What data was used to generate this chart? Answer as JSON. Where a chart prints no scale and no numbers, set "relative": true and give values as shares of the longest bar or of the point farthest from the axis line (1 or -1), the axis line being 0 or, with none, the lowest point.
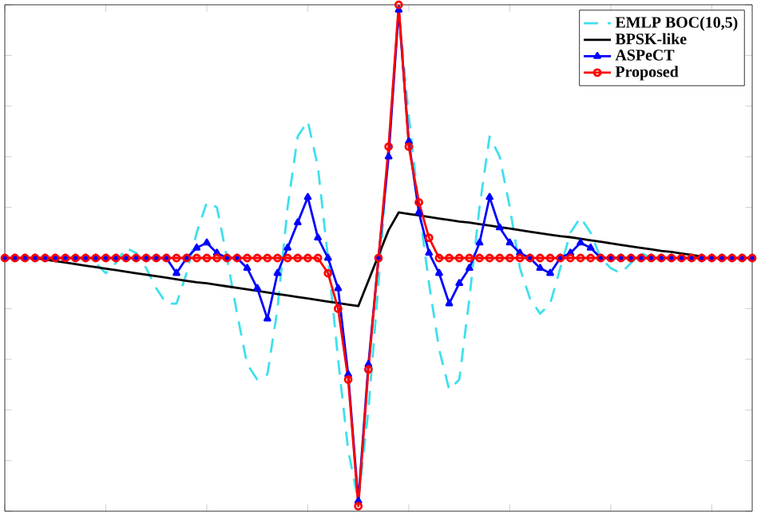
{
  "chart_data": {
    "type": "line",
    "relative": true,
    "legend": "top right",
    "tick_labels": false,
    "categories": [
      null,
      null,
      null,
      null,
      null,
      null,
      null,
      null,
      null,
      null,
      null,
      null,
      null,
      null,
      null,
      null,
      null,
      null,
      null,
      null,
      null,
      null,
      null,
      null,
      null,
      null,
      null,
      null,
      null,
      null,
      null,
      null,
      null,
      null,
      null,
      null,
      null,
      null,
      null,
      null,
      null,
      null,
      null,
      null,
      null,
      null,
      null,
      null,
      null,
      null,
      null,
      null,
      null,
      null,
      null,
      null,
      null,
      null,
      null,
      null,
      null,
      null,
      null,
      null,
      null,
      null,
      null,
      null,
      null,
      null,
      null,
      null,
      null,
      null,
      null
    ],
    "series": [
      {
        "name": "EMLP BOC(10,5)",
        "color": "#3ee0ec",
        "line_style": "dashed",
        "marker": "none",
        "values": [
          null,
          null,
          null,
          null,
          null,
          null,
          null,
          0.5,
          0.5,
          0.49,
          0.47,
          0.49,
          0.52,
          0.51,
          0.48,
          0.44,
          0.41,
          0.41,
          0.47,
          0.55,
          0.61,
          0.6,
          0.5,
          0.39,
          0.29,
          0.26,
          0.27,
          0.4,
          0.6,
          0.74,
          0.77,
          0.68,
          0.5,
          0.3,
          0.12,
          0.02,
          0.2,
          0.45,
          0.72,
          0.99,
          0.78,
          0.6,
          0.45,
          0.32,
          0.24,
          0.26,
          0.42,
          0.6,
          0.74,
          0.7,
          0.6,
          0.48,
          0.42,
          0.39,
          0.41,
          0.48,
          0.55,
          0.58,
          0.55,
          0.5,
          0.48,
          0.47,
          0.49,
          0.51,
          0.5,
          0.5,
          0.5,
          null,
          null,
          null,
          null,
          null,
          null,
          null,
          null
        ]
      },
      {
        "name": "BPSK-like",
        "color": "#000000",
        "line_style": "solid",
        "marker": "none",
        "values": [
          null,
          null,
          null,
          0.5,
          0.497,
          0.494,
          0.491,
          0.488,
          0.485,
          0.482,
          0.479,
          0.476,
          0.473,
          0.47,
          0.467,
          0.464,
          0.461,
          0.458,
          0.455,
          0.452,
          0.45,
          0.447,
          0.444,
          0.441,
          0.438,
          0.435,
          0.432,
          0.429,
          0.426,
          0.423,
          0.42,
          0.417,
          0.414,
          0.411,
          0.408,
          0.405,
          0.455,
          0.505,
          0.555,
          0.59,
          0.587,
          0.584,
          0.581,
          0.578,
          0.575,
          0.572,
          0.57,
          0.567,
          0.564,
          0.561,
          0.558,
          0.555,
          0.552,
          0.549,
          0.546,
          0.543,
          0.541,
          0.538,
          0.535,
          0.532,
          0.529,
          0.526,
          0.523,
          0.52,
          0.517,
          0.514,
          0.512,
          0.509,
          0.506,
          0.503,
          null,
          null,
          null,
          null,
          null
        ]
      },
      {
        "name": "ASPeCT",
        "color": "#0000ff",
        "line_style": "solid",
        "marker": "triangle",
        "values": [
          0.5,
          0.5,
          0.5,
          0.5,
          0.5,
          0.5,
          0.5,
          0.5,
          0.5,
          0.5,
          0.5,
          0.5,
          0.5,
          0.5,
          0.5,
          0.5,
          0.5,
          0.47,
          0.5,
          0.52,
          0.53,
          0.51,
          0.5,
          0.5,
          0.48,
          0.44,
          0.38,
          0.47,
          0.52,
          0.57,
          0.62,
          0.54,
          0.5,
          0.44,
          0.27,
          0.02,
          0.29,
          0.5,
          0.7,
          0.99,
          0.73,
          0.59,
          0.51,
          0.47,
          0.41,
          0.45,
          0.48,
          0.53,
          0.62,
          0.56,
          0.53,
          0.51,
          0.5,
          0.48,
          0.47,
          0.5,
          0.51,
          0.53,
          0.52,
          0.5,
          0.5,
          0.5,
          0.5,
          0.5,
          0.5,
          0.5,
          0.5,
          0.5,
          0.5,
          0.5,
          0.5,
          0.5,
          0.5,
          0.5,
          0.5
        ]
      },
      {
        "name": "Proposed",
        "color": "#ff0000",
        "line_style": "solid",
        "marker": "circle",
        "values": [
          0.5,
          0.5,
          0.5,
          0.5,
          0.5,
          0.5,
          0.5,
          0.5,
          0.5,
          0.5,
          0.5,
          0.5,
          0.5,
          0.5,
          0.5,
          0.5,
          0.5,
          0.5,
          0.5,
          0.5,
          0.5,
          0.5,
          0.5,
          0.5,
          0.5,
          0.5,
          0.5,
          0.5,
          0.5,
          0.5,
          0.5,
          0.5,
          0.47,
          0.4,
          0.26,
          0.01,
          0.28,
          0.5,
          0.72,
          1.0,
          0.72,
          0.61,
          0.54,
          0.5,
          0.5,
          0.5,
          0.5,
          0.5,
          0.5,
          0.5,
          0.5,
          0.5,
          0.5,
          0.5,
          0.5,
          0.5,
          0.5,
          0.5,
          0.5,
          0.5,
          0.5,
          0.5,
          0.5,
          0.5,
          0.5,
          0.5,
          0.5,
          0.5,
          0.5,
          0.5,
          0.5,
          0.5,
          0.5,
          0.5,
          0.5
        ]
      }
    ]
  }
}
